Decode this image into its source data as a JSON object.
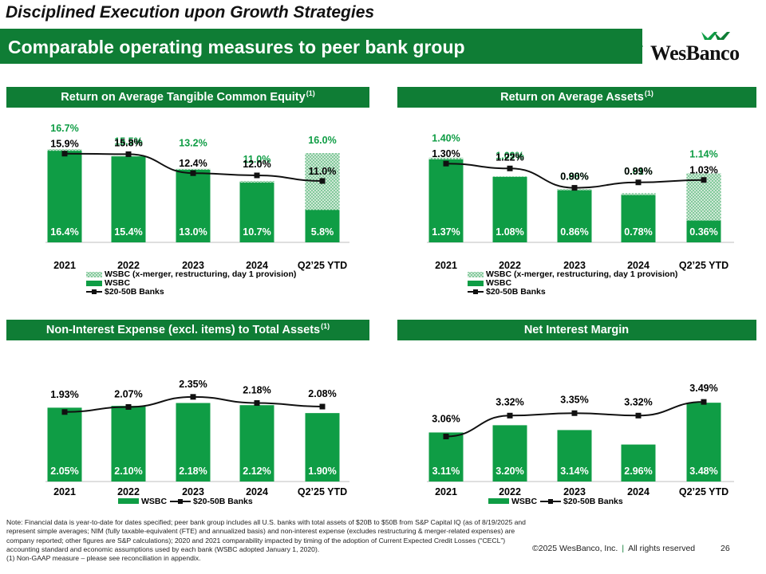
{
  "header": {
    "top_title": "Disciplined Execution upon Growth Strategies",
    "banner_title": "Comparable operating measures to peer bank group",
    "logo_text": "WesBanco",
    "brand_color": "#0f7d35"
  },
  "colors": {
    "bar": "#0f9d45",
    "hatch_bg": "#cfe8d6",
    "line": "#111111",
    "label_green": "#0f9d45"
  },
  "chart_data": [
    {
      "type": "bar",
      "title": "Return on Average Tangible Common Equity",
      "title_sup": "(1)",
      "categories": [
        "2021",
        "2022",
        "2023",
        "2024",
        "Q2’25 YTD"
      ],
      "series": [
        {
          "name": "WSBC",
          "values": [
            16.4,
            15.4,
            13.0,
            10.7,
            5.8
          ],
          "labels": [
            "16.4%",
            "15.4%",
            "13.0%",
            "10.7%",
            "5.8%"
          ]
        },
        {
          "name": "WSBC (x-merger, restructuring, day 1 provision)",
          "values": [
            16.7,
            15.5,
            13.2,
            11.0,
            16.0
          ],
          "labels": [
            "16.7%",
            "15.5%",
            "13.2%",
            "11.0%",
            "16.0%"
          ]
        },
        {
          "name": "$20-50B Banks",
          "values": [
            15.9,
            15.8,
            12.4,
            12.0,
            11.0
          ],
          "labels": [
            "15.9%",
            "15.8%",
            "12.4%",
            "12.0%",
            "11.0%"
          ]
        }
      ],
      "ylim": [
        0,
        18
      ],
      "legend": [
        "WSBC (x-merger, restructuring, day 1 provision)",
        "WSBC",
        "$20-50B Banks"
      ]
    },
    {
      "type": "bar",
      "title": "Return on Average Assets",
      "title_sup": "(1)",
      "categories": [
        "2021",
        "2022",
        "2023",
        "2024",
        "Q2’25 YTD"
      ],
      "series": [
        {
          "name": "WSBC",
          "values": [
            1.37,
            1.08,
            0.86,
            0.78,
            0.36
          ],
          "labels": [
            "1.37%",
            "1.08%",
            "0.86%",
            "0.78%",
            "0.36%"
          ]
        },
        {
          "name": "WSBC (x-merger, restructuring, day 1 provision)",
          "values": [
            1.4,
            1.09,
            0.88,
            0.81,
            1.14
          ],
          "labels": [
            "1.40%",
            "1.09%",
            "0.88%",
            "0.81%",
            "1.14%"
          ]
        },
        {
          "name": "$20-50B Banks",
          "values": [
            1.3,
            1.22,
            0.9,
            0.99,
            1.03
          ],
          "labels": [
            "1.30%",
            "1.22%",
            "0.90%",
            "0.99%",
            "1.03%"
          ]
        }
      ],
      "ylim": [
        0,
        1.5
      ],
      "legend": [
        "WSBC (x-merger, restructuring, day 1 provision)",
        "WSBC",
        "$20-50B Banks"
      ]
    },
    {
      "type": "bar",
      "title": "Non-Interest Expense (excl. items) to Total Assets",
      "title_sup": "(1)",
      "categories": [
        "2021",
        "2022",
        "2023",
        "2024",
        "Q2’25 YTD"
      ],
      "series": [
        {
          "name": "WSBC",
          "values": [
            2.05,
            2.1,
            2.18,
            2.12,
            1.9
          ],
          "labels": [
            "2.05%",
            "2.10%",
            "2.18%",
            "2.12%",
            "1.90%"
          ]
        },
        {
          "name": "$20-50B Banks",
          "values": [
            1.93,
            2.07,
            2.35,
            2.18,
            2.08
          ],
          "labels": [
            "1.93%",
            "2.07%",
            "2.35%",
            "2.18%",
            "2.08%"
          ]
        }
      ],
      "ylim": [
        0,
        2.7
      ],
      "legend": [
        "WSBC",
        "$20-50B Banks"
      ]
    },
    {
      "type": "bar",
      "title": "Net Interest Margin",
      "title_sup": "",
      "categories": [
        "2021",
        "2022",
        "2023",
        "2024",
        "Q2’25 YTD"
      ],
      "series": [
        {
          "name": "WSBC",
          "values": [
            3.11,
            3.2,
            3.14,
            2.96,
            3.48
          ],
          "labels": [
            "3.11%",
            "3.20%",
            "3.14%",
            "2.96%",
            "3.48%"
          ]
        },
        {
          "name": "$20-50B Banks",
          "values": [
            3.06,
            3.32,
            3.35,
            3.32,
            3.49
          ],
          "labels": [
            "3.06%",
            "3.32%",
            "3.35%",
            "3.32%",
            "3.49%"
          ]
        }
      ],
      "ylim": [
        2.5,
        3.65
      ],
      "legend": [
        "WSBC",
        "$20-50B Banks"
      ]
    }
  ],
  "footer": {
    "note": "Note: Financial data is year-to-date for dates specified; peer bank group includes all U.S. banks with total assets of $20B to $50B from S&P Capital IQ (as of 8/19/2025 and represent simple averages; NIM (fully taxable-equivalent (FTE) and annualized basis) and non-interest expense (excludes restructuring & merger-related expenses) are company reported; other figures are S&P calculations); 2020 and 2021 comparability impacted by timing of the adoption of Current Expected Credit Losses (“CECL”) accounting standard and economic assumptions used by each bank (WSBC adopted January 1, 2020).",
    "note2": "(1) Non-GAAP measure – please see reconciliation in appendix.",
    "copyright": "©2025 WesBanco, Inc.",
    "separator": "|",
    "rights": "All rights reserved",
    "page": "26"
  }
}
